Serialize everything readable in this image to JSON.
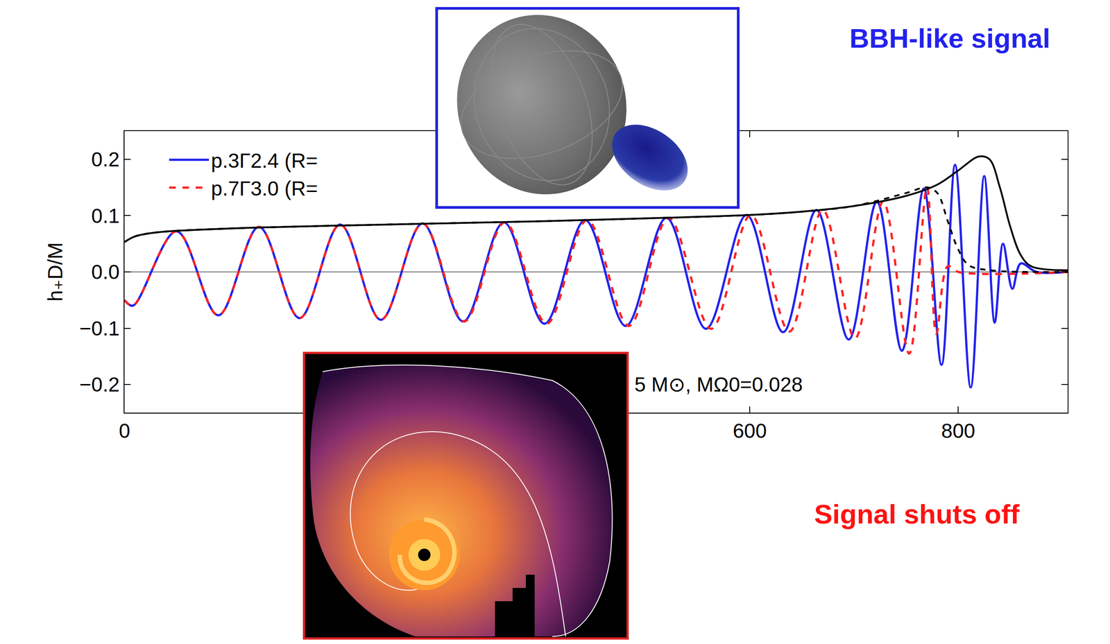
{
  "chart_data": {
    "type": "line",
    "xlim": [
      0,
      905
    ],
    "ylim": [
      -0.25,
      0.25
    ],
    "xticks": [
      0,
      600,
      800
    ],
    "yticks": [
      {
        "value": -0.2,
        "label": "−0.2"
      },
      {
        "value": -0.1,
        "label": "−0.1"
      },
      {
        "value": 0,
        "label": "0.0"
      },
      0.1,
      0.2
    ],
    "y_label": "h₊D/M",
    "grid": false,
    "legend": "upper left",
    "series": [
      {
        "name": "p.3Γ2.4 (R=",
        "color": "#2222ee",
        "line_style": "solid",
        "x": [
          0,
          8,
          50,
          90,
          129,
          168,
          207,
          246,
          286,
          325,
          364,
          403,
          442,
          481,
          520,
          558,
          597,
          632,
          664,
          695,
          722,
          746,
          767,
          784,
          797,
          812,
          825,
          835,
          843,
          852,
          860,
          875,
          905
        ],
        "values": [
          -0.05,
          -0.06,
          0.072,
          -0.077,
          0.08,
          -0.082,
          0.084,
          -0.085,
          0.086,
          -0.088,
          0.088,
          -0.092,
          0.092,
          -0.096,
          0.096,
          -0.101,
          0.101,
          -0.107,
          0.11,
          -0.12,
          0.125,
          -0.14,
          0.148,
          -0.165,
          0.19,
          -0.205,
          0.17,
          -0.09,
          0.05,
          -0.03,
          0.015,
          0.0,
          0.0
        ]
      },
      {
        "name": "p.7Γ3.0 (R=",
        "color": "#ff2222",
        "line_style": "dashed",
        "x": [
          0,
          8,
          50,
          90,
          129,
          168,
          207,
          246,
          286,
          326,
          365,
          405,
          444,
          484,
          522,
          563,
          601,
          638,
          670,
          701,
          728,
          753,
          770,
          779,
          790,
          800,
          905
        ],
        "values": [
          -0.05,
          -0.06,
          0.072,
          -0.077,
          0.08,
          -0.082,
          0.084,
          -0.085,
          0.086,
          -0.088,
          0.088,
          -0.092,
          0.092,
          -0.096,
          0.096,
          -0.101,
          0.101,
          -0.106,
          0.11,
          -0.118,
          0.125,
          -0.145,
          0.15,
          -0.11,
          0.01,
          0.0,
          0.0
        ]
      },
      {
        "color": "#000000",
        "line_style": "solid",
        "x": [
          0,
          10,
          30,
          100,
          200,
          300,
          400,
          500,
          600,
          650,
          700,
          750,
          780,
          800,
          820,
          830,
          840,
          850,
          860,
          870,
          905
        ],
        "values": [
          0.053,
          0.063,
          0.07,
          0.077,
          0.082,
          0.086,
          0.09,
          0.095,
          0.101,
          0.107,
          0.117,
          0.135,
          0.155,
          0.18,
          0.205,
          0.2,
          0.15,
          0.08,
          0.03,
          0.01,
          0.003
        ]
      },
      {
        "color": "#000000",
        "line_style": "dashed",
        "x": [
          0,
          10,
          30,
          100,
          200,
          300,
          400,
          500,
          600,
          650,
          700,
          750,
          770,
          780,
          790,
          800,
          810,
          830,
          905
        ],
        "values": [
          0.053,
          0.063,
          0.07,
          0.077,
          0.082,
          0.086,
          0.09,
          0.095,
          0.101,
          0.107,
          0.117,
          0.14,
          0.15,
          0.14,
          0.09,
          0.04,
          0.012,
          0.003,
          0.0
        ]
      }
    ],
    "annotations": [
      {
        "text": "BBH-like signal",
        "color": "#2222ee"
      },
      {
        "text": "Signal shuts off",
        "color": "#ff1111"
      },
      {
        "text": "5 M⊙, MΩ0=0.028",
        "color": "#000000"
      }
    ]
  }
}
